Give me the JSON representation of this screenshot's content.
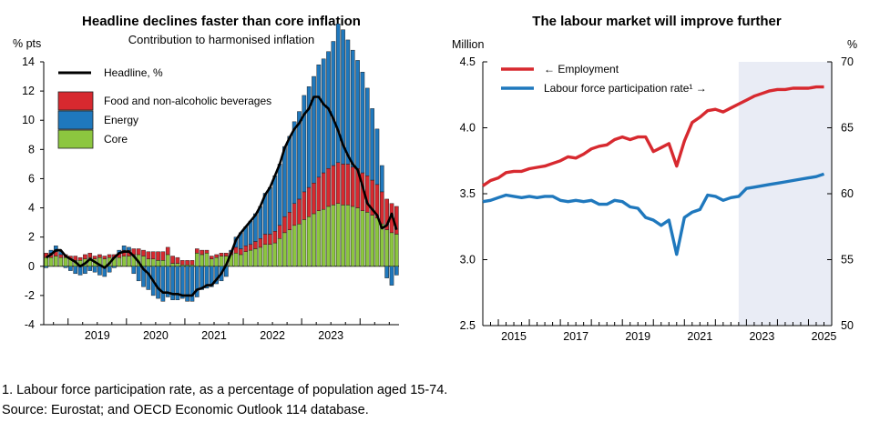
{
  "chart_data": [
    {
      "type": "bar",
      "title": "Headline declines faster than core inflation",
      "subtitle": "Contribution to harmonised inflation",
      "ylabel": "% pts",
      "ylim": [
        -4,
        14
      ],
      "yticks": [
        "14",
        "12",
        "10",
        "8",
        "6",
        "4",
        "2",
        "0",
        "-2",
        "-4"
      ],
      "xticks": [
        "2019",
        "2020",
        "2021",
        "2022",
        "2023"
      ],
      "legend": {
        "headline": "Headline, %",
        "food": "Food and non-alcoholic beverages",
        "energy": "Energy",
        "core": "Core"
      },
      "colors": {
        "food": "#d7292f",
        "energy": "#1f78bd",
        "core": "#8cc63f",
        "headline": "#000000",
        "bar_outline": "#1a1a1a"
      },
      "months_start": "2018-08",
      "series": [
        {
          "name": "Core",
          "values": [
            0.6,
            0.6,
            0.7,
            0.6,
            0.6,
            0.5,
            0.4,
            0.4,
            0.5,
            0.6,
            0.5,
            0.6,
            0.5,
            0.6,
            0.6,
            0.6,
            0.7,
            0.7,
            0.8,
            0.8,
            0.7,
            0.5,
            0.5,
            0.4,
            0.4,
            0.8,
            0.2,
            0.2,
            0.1,
            0.1,
            0.1,
            0.9,
            0.8,
            0.9,
            0.5,
            0.6,
            0.7,
            0.7,
            0.8,
            0.9,
            0.8,
            1.0,
            1.1,
            1.2,
            1.3,
            1.5,
            1.5,
            1.6,
            1.9,
            2.3,
            2.5,
            2.8,
            2.9,
            3.2,
            3.4,
            3.6,
            3.8,
            3.9,
            4.1,
            4.2,
            4.3,
            4.2,
            4.2,
            4.1,
            4.0,
            3.8,
            3.7,
            3.5,
            3.3,
            2.9,
            2.5,
            2.3,
            2.2
          ]
        },
        {
          "name": "Food and non-alcoholic beverages",
          "values": [
            0.3,
            0.3,
            0.3,
            0.2,
            0.2,
            0.2,
            0.3,
            0.2,
            0.3,
            0.3,
            0.2,
            0.2,
            0.2,
            0.2,
            0.2,
            0.3,
            0.4,
            0.4,
            0.4,
            0.4,
            0.4,
            0.5,
            0.5,
            0.6,
            0.6,
            0.5,
            0.5,
            0.4,
            0.3,
            0.3,
            0.3,
            0.3,
            0.3,
            0.2,
            0.2,
            0.2,
            0.2,
            0.2,
            0.2,
            0.4,
            0.4,
            0.4,
            0.4,
            0.5,
            0.6,
            0.7,
            0.7,
            0.8,
            0.9,
            1.1,
            1.2,
            1.5,
            1.7,
            1.9,
            2.0,
            2.1,
            2.3,
            2.5,
            2.6,
            2.7,
            2.8,
            2.8,
            2.8,
            2.7,
            2.7,
            2.6,
            2.5,
            2.4,
            2.3,
            2.2,
            2.1,
            2.0,
            1.9
          ]
        },
        {
          "name": "Energy",
          "values": [
            -0.1,
            0.2,
            0.4,
            0.2,
            -0.1,
            -0.3,
            -0.5,
            -0.6,
            -0.5,
            -0.3,
            -0.4,
            -0.6,
            -0.7,
            -0.4,
            -0.1,
            0.2,
            0.3,
            0.2,
            -0.5,
            -1.0,
            -1.4,
            -1.6,
            -2.0,
            -2.2,
            -2.4,
            -2.1,
            -2.3,
            -2.3,
            -2.2,
            -2.4,
            -2.4,
            -2.1,
            -1.6,
            -1.5,
            -1.4,
            -1.2,
            -1.0,
            -0.7,
            0.1,
            0.7,
            1.1,
            1.3,
            1.6,
            1.9,
            2.2,
            2.8,
            3.2,
            3.8,
            4.2,
            4.8,
            5.2,
            5.6,
            6.0,
            6.6,
            6.9,
            7.3,
            7.7,
            7.8,
            8.0,
            8.5,
            9.5,
            9.2,
            8.5,
            8.0,
            7.4,
            6.9,
            6.0,
            4.9,
            3.8,
            1.8,
            -0.8,
            -1.3,
            -0.6
          ]
        }
      ],
      "headline": [
        0.6,
        0.8,
        1.1,
        1.1,
        0.7,
        0.5,
        0.3,
        0.0,
        0.2,
        0.5,
        0.3,
        0.1,
        -0.1,
        0.2,
        0.6,
        0.9,
        1.0,
        1.0,
        0.7,
        0.3,
        -0.2,
        -0.5,
        -1.0,
        -1.5,
        -1.8,
        -1.8,
        -1.9,
        -1.9,
        -2.0,
        -2.0,
        -2.0,
        -1.6,
        -1.5,
        -1.3,
        -1.3,
        -0.9,
        -0.5,
        0.1,
        0.9,
        1.8,
        2.3,
        2.7,
        3.1,
        3.5,
        4.1,
        4.9,
        5.4,
        6.2,
        7.0,
        8.1,
        8.8,
        9.4,
        9.8,
        10.4,
        10.8,
        11.6,
        11.6,
        11.1,
        10.8,
        10.1,
        9.3,
        8.3,
        7.6,
        7.0,
        6.6,
        5.5,
        4.3,
        3.9,
        3.5,
        2.6,
        2.8,
        3.6,
        2.5
      ]
    },
    {
      "type": "line",
      "title": "The labour market will improve further",
      "ylabel_left": "Million",
      "ylabel_right": "%",
      "ylim_left": [
        2.5,
        4.5
      ],
      "ylim_right": [
        50,
        70
      ],
      "yticks_left": [
        "4.5",
        "4.0",
        "3.5",
        "3.0",
        "2.5"
      ],
      "yticks_right": [
        "70",
        "65",
        "60",
        "55",
        "50"
      ],
      "xticks": [
        "2015",
        "2017",
        "2019",
        "2021",
        "2023",
        "2025"
      ],
      "x_range": [
        2014.5,
        2025.75
      ],
      "projection_start": 2022.75,
      "colors": {
        "employment": "#d7292f",
        "participation": "#1f78bd",
        "projection_shade": "#e9ecf5"
      },
      "series": [
        {
          "name": "← Employment",
          "axis": "left",
          "x": [
            2014.5,
            2014.75,
            2015,
            2015.25,
            2015.5,
            2015.75,
            2016,
            2016.25,
            2016.5,
            2016.75,
            2017,
            2017.25,
            2017.5,
            2017.75,
            2018,
            2018.25,
            2018.5,
            2018.75,
            2019,
            2019.25,
            2019.5,
            2019.75,
            2020,
            2020.25,
            2020.5,
            2020.75,
            2021,
            2021.25,
            2021.5,
            2021.75,
            2022,
            2022.25,
            2022.5,
            2022.75,
            2023,
            2023.25,
            2023.5,
            2023.75,
            2024,
            2024.25,
            2024.5,
            2024.75,
            2025,
            2025.25,
            2025.5
          ],
          "values": [
            3.56,
            3.6,
            3.62,
            3.66,
            3.67,
            3.67,
            3.69,
            3.7,
            3.71,
            3.73,
            3.75,
            3.78,
            3.77,
            3.8,
            3.84,
            3.86,
            3.87,
            3.91,
            3.93,
            3.91,
            3.93,
            3.93,
            3.82,
            3.85,
            3.88,
            3.71,
            3.9,
            4.04,
            4.08,
            4.13,
            4.14,
            4.12,
            4.15,
            4.18,
            4.21,
            4.24,
            4.26,
            4.28,
            4.29,
            4.29,
            4.3,
            4.3,
            4.3,
            4.31,
            4.31
          ]
        },
        {
          "name": "Labour force participation rate¹ →",
          "axis": "right",
          "x": [
            2014.5,
            2014.75,
            2015,
            2015.25,
            2015.5,
            2015.75,
            2016,
            2016.25,
            2016.5,
            2016.75,
            2017,
            2017.25,
            2017.5,
            2017.75,
            2018,
            2018.25,
            2018.5,
            2018.75,
            2019,
            2019.25,
            2019.5,
            2019.75,
            2020,
            2020.25,
            2020.5,
            2020.75,
            2021,
            2021.25,
            2021.5,
            2021.75,
            2022,
            2022.25,
            2022.5,
            2022.75,
            2023,
            2023.25,
            2023.5,
            2023.75,
            2024,
            2024.25,
            2024.5,
            2024.75,
            2025,
            2025.25,
            2025.5
          ],
          "values": [
            59.4,
            59.5,
            59.7,
            59.9,
            59.8,
            59.7,
            59.8,
            59.7,
            59.8,
            59.8,
            59.5,
            59.4,
            59.5,
            59.4,
            59.5,
            59.2,
            59.2,
            59.5,
            59.4,
            59.0,
            58.9,
            58.2,
            58.0,
            57.6,
            58.0,
            55.4,
            58.2,
            58.6,
            58.8,
            59.9,
            59.8,
            59.5,
            59.7,
            59.8,
            60.4,
            60.5,
            60.6,
            60.7,
            60.8,
            60.9,
            61.0,
            61.1,
            61.2,
            61.3,
            61.5
          ]
        }
      ]
    }
  ],
  "footnote": "1. Labour force participation rate, as a percentage of population aged 15-74.",
  "source": "Source: Eurostat; and OECD Economic Outlook 114 database."
}
